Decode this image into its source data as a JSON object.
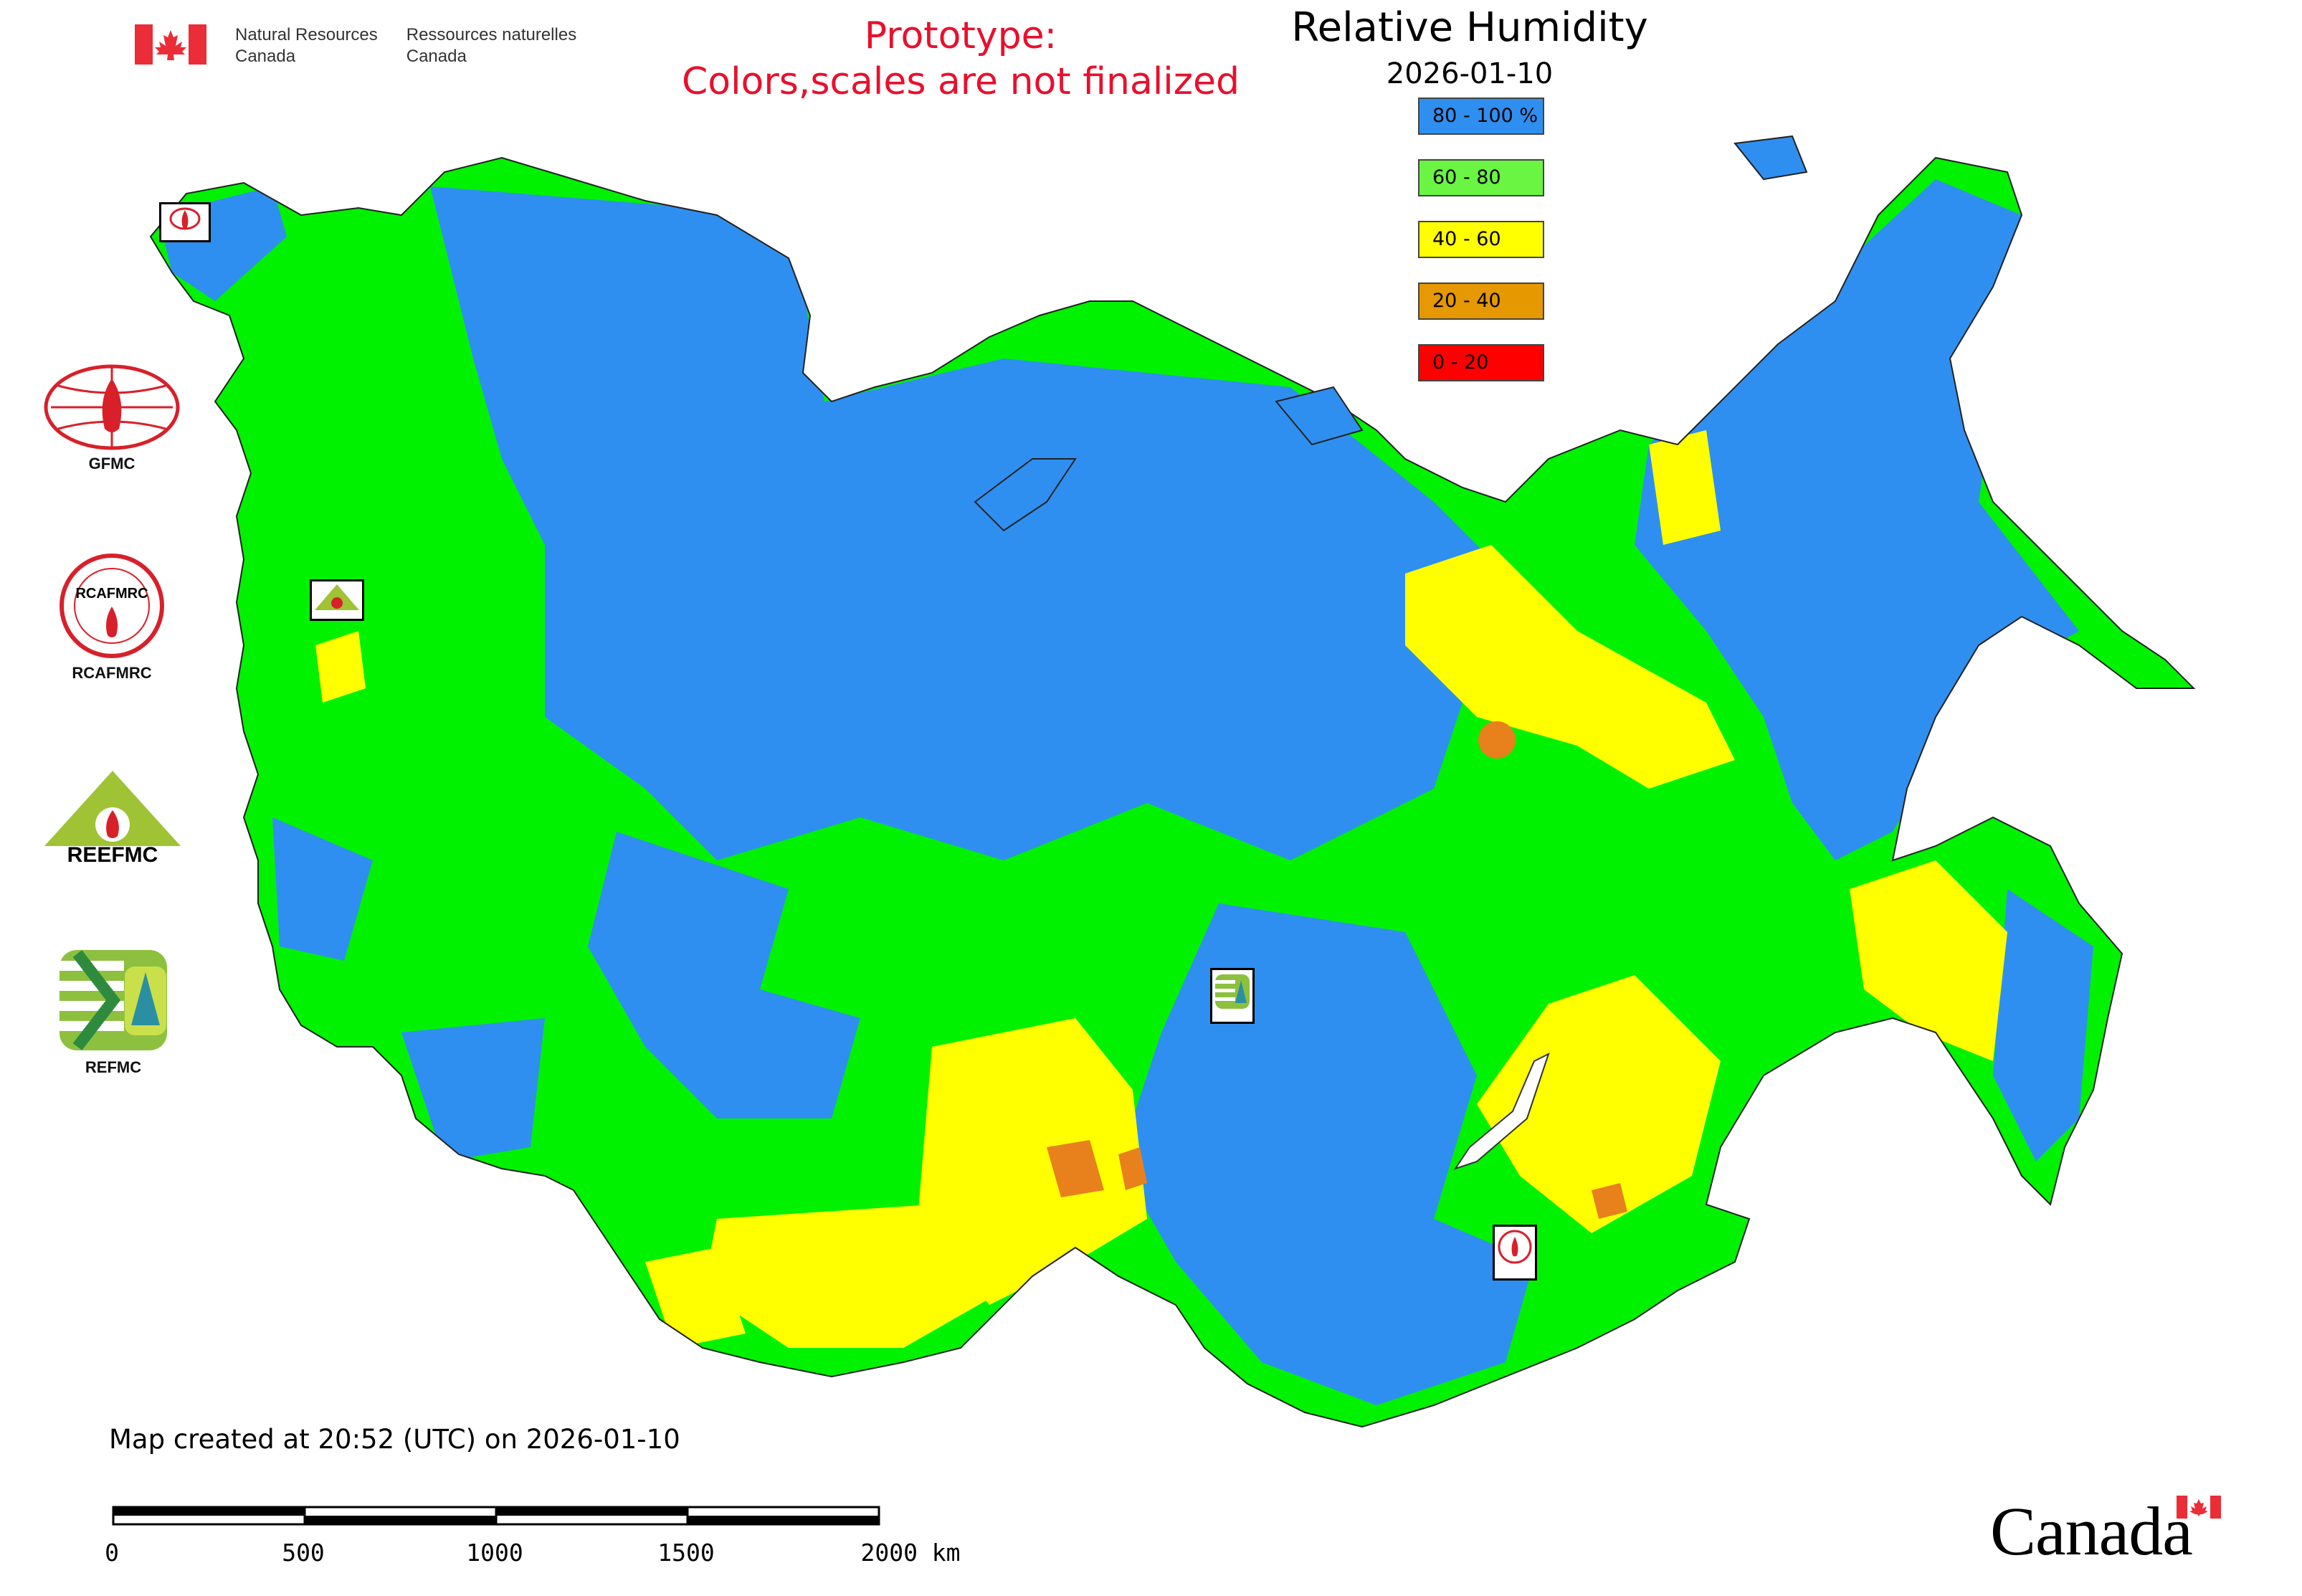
{
  "header": {
    "dept_en_line1": "Natural Resources",
    "dept_en_line2": "Canada",
    "dept_fr_line1": "Ressources naturelles",
    "dept_fr_line2": "Canada"
  },
  "prototype_note": {
    "line1": "Prototype:",
    "line2": "Colors,scales are not finalized"
  },
  "map": {
    "title": "Relative Humidity",
    "date": "2026-01-10",
    "created_note": "Map created at 20:52 (UTC) on 2026-01-10"
  },
  "legend": {
    "items": [
      {
        "label": "80 - 100 %",
        "color": "#2f8ff0"
      },
      {
        "label": "60 - 80",
        "color": "#69f542"
      },
      {
        "label": "40 - 60",
        "color": "#ffff00"
      },
      {
        "label": "20 - 40",
        "color": "#e59800"
      },
      {
        "label": "0 - 20",
        "color": "#ff0000"
      }
    ]
  },
  "colors": {
    "humid_blue": "#2f8ff0",
    "green": "#00f200",
    "yellow": "#ffff00",
    "orange": "#e8801c",
    "red_text": "#e8102d",
    "canada_red": "#eb2d37"
  },
  "side_logos": {
    "gfmc": "GFMC",
    "rcafmrc": "RCAFMRC",
    "reefmc": "REEFMC",
    "refmc": "REFMC",
    "reefmc_logo_text": "REEFMC",
    "rcafmrc_logo_text": "RCAFMRC"
  },
  "scale": {
    "ticks": [
      "0",
      "500",
      "1000",
      "1500",
      "2000 km"
    ]
  },
  "wordmark": "Canada"
}
